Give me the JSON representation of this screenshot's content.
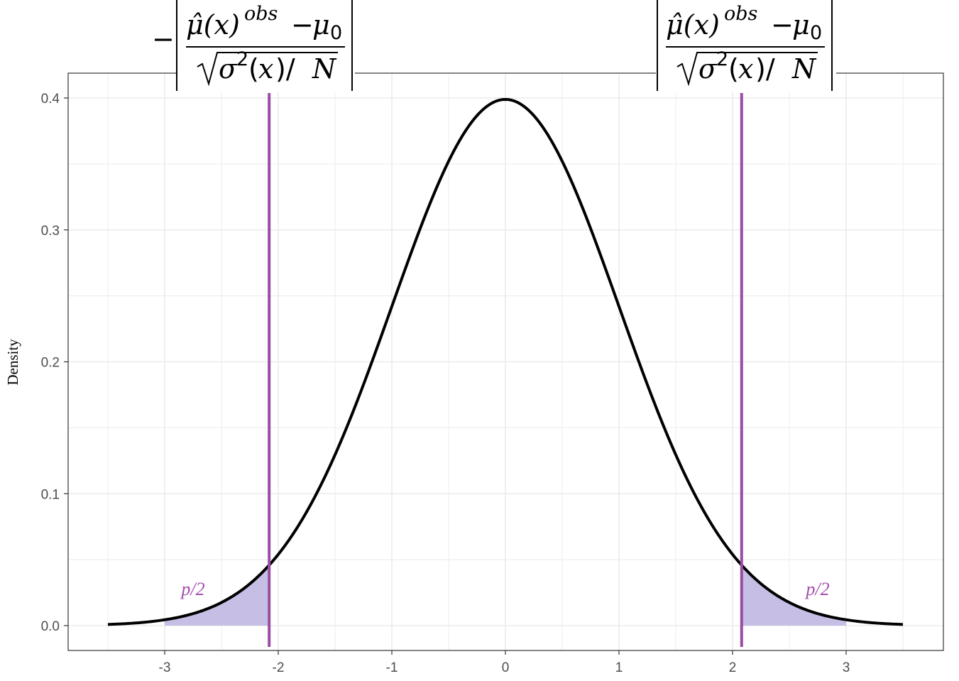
{
  "chart_data": {
    "type": "area",
    "ylabel": "Density",
    "xlim": [
      -3.5,
      3.5
    ],
    "ylim": [
      0,
      0.4
    ],
    "x_ticks": [
      "-3",
      "-2",
      "-1",
      "0",
      "1",
      "2",
      "3"
    ],
    "y_ticks": [
      "0.0",
      "0.1",
      "0.2",
      "0.3",
      "0.4"
    ],
    "x_tick_values": [
      -3,
      -2,
      -1,
      0,
      1,
      2,
      3
    ],
    "y_tick_values": [
      0,
      0.1,
      0.2,
      0.3,
      0.4
    ],
    "curve": {
      "distribution": "standard normal density",
      "mean": 0,
      "sd": 1,
      "x_range": [
        -3.5,
        3.5
      ]
    },
    "critical_values": [
      -2.08,
      2.08
    ],
    "shaded_tails": [
      {
        "from": -3.0,
        "to": -2.08,
        "label": "p/2"
      },
      {
        "from": 2.08,
        "to": 3.0,
        "label": "p/2"
      }
    ],
    "annotations": {
      "left_label": {
        "prefix": "−",
        "numerator": "μ̂(x)ᵒᵇˢ − μ₀",
        "denominator": "√σ²(x)/N",
        "text": "−|(μ̂(x)^obs − μ₀) / √(σ²(x)/N)|"
      },
      "right_label": {
        "numerator": "μ̂(x)ᵒᵇˢ − μ₀",
        "denominator": "√σ²(x)/N",
        "text": "|(μ̂(x)^obs − μ₀) / √(σ²(x)/N)|"
      }
    },
    "grid": true,
    "colors": {
      "curve": "#000000",
      "vline": "#984ea3",
      "shade": "#c6bee5",
      "annot_text": "#a64bb0",
      "grid": "#ebebeb",
      "panel_border": "#333333"
    }
  }
}
